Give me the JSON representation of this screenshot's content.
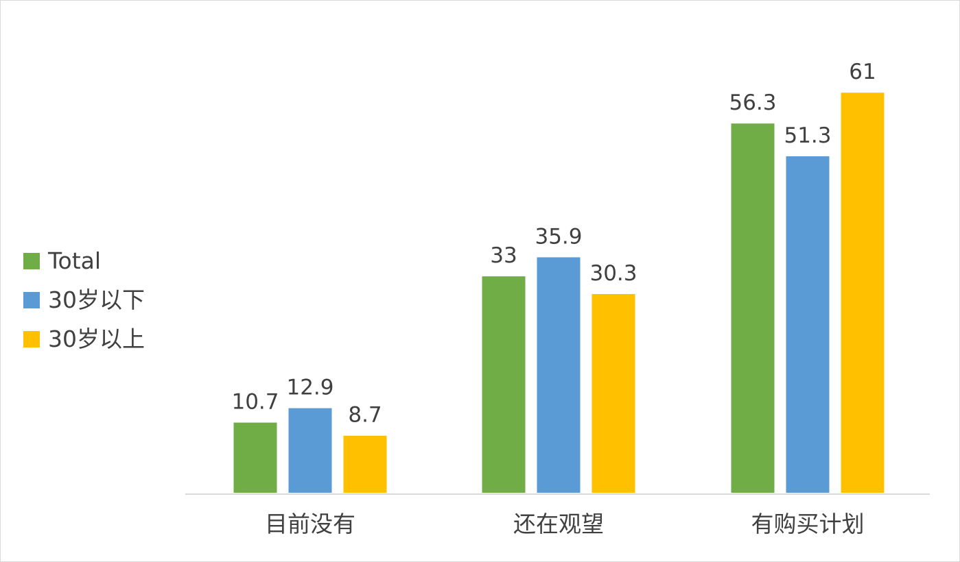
{
  "chart_data": {
    "type": "bar",
    "categories": [
      "目前没有",
      "还在观望",
      "有购买计划"
    ],
    "series": [
      {
        "name": "Total",
        "color": "#70AD47",
        "values": [
          10.7,
          33,
          56.3
        ],
        "labels": [
          "10.7",
          "33",
          "56.3"
        ]
      },
      {
        "name": "30岁以下",
        "color": "#5B9BD5",
        "values": [
          12.9,
          35.9,
          51.3
        ],
        "labels": [
          "12.9",
          "35.9",
          "51.3"
        ]
      },
      {
        "name": "30岁以上",
        "color": "#FFC000",
        "values": [
          8.7,
          30.3,
          61
        ],
        "labels": [
          "8.7",
          "30.3",
          "61"
        ]
      }
    ],
    "ylim": [
      0,
      61
    ],
    "legend_position": "left",
    "grid": false,
    "axis_color": "#d9d9d9",
    "text_color": "#404040"
  }
}
